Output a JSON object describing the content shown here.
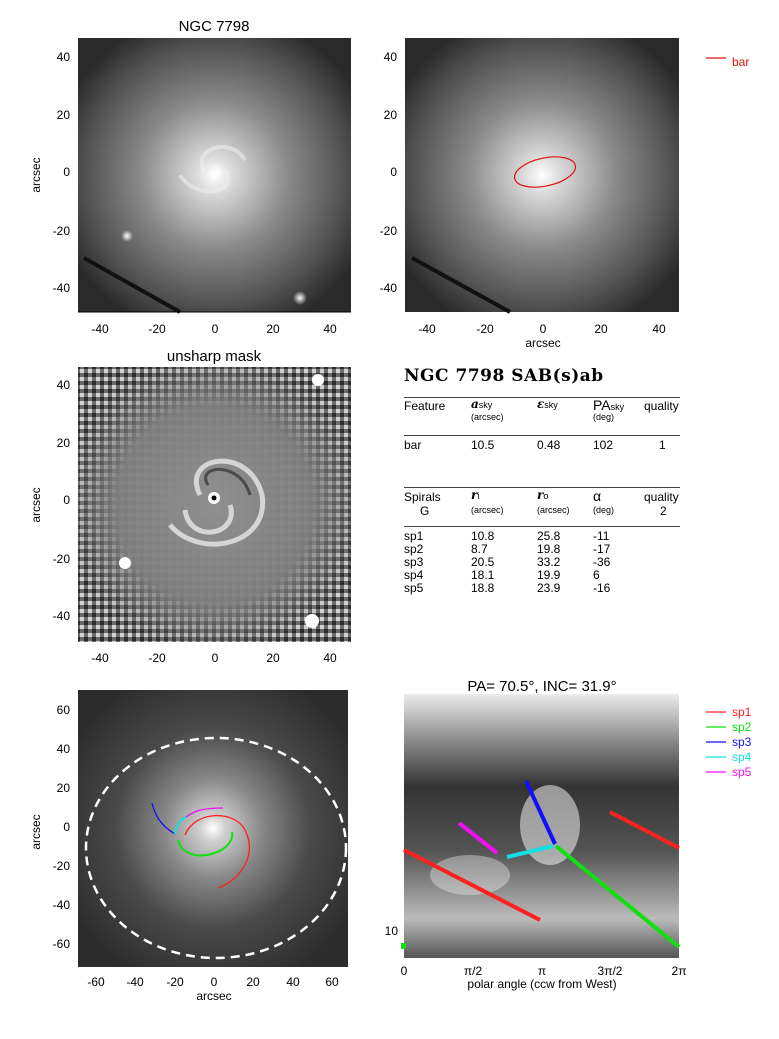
{
  "panels": {
    "p1_title": "NGC 7798",
    "p3_title": "unsharp mask",
    "p6_title": "PA= 70.5°, INC= 31.9°"
  },
  "axes": {
    "ylabel": "arcsec",
    "xlabel_p2": "arcsec",
    "xlabel_p5": "arcsec",
    "xlabel_p6": "polar angle (ccw from West)",
    "ticks_small": [
      "-40",
      "-20",
      "0",
      "20",
      "40"
    ],
    "ticks_large": [
      "-60",
      "-40",
      "-20",
      "0",
      "20",
      "40",
      "60"
    ],
    "ticks_polar": [
      "0",
      "π/2",
      "π",
      "3π/2",
      "2π"
    ],
    "p6_ytick": "10"
  },
  "legend_top": {
    "label": "bar",
    "color": "#e01010"
  },
  "legend_bottom": [
    {
      "label": "sp1",
      "color": "#ff2020"
    },
    {
      "label": "sp2",
      "color": "#10e010"
    },
    {
      "label": "sp3",
      "color": "#1010ff"
    },
    {
      "label": "sp4",
      "color": "#10e0e0"
    },
    {
      "label": "sp5",
      "color": "#f010f0"
    }
  ],
  "table": {
    "title": "NGC 7798  SAB(s)ab",
    "bar_header": {
      "feature": "Feature",
      "a": "a",
      "a_sub": "sky",
      "a_unit": "(arcsec)",
      "e": "ε",
      "e_sub": "sky",
      "pa": "PA",
      "pa_sub": "sky",
      "pa_unit": "(deg)",
      "quality": "quality"
    },
    "bar_row": {
      "name": "bar",
      "a": "10.5",
      "e": "0.48",
      "pa": "102",
      "q": "1"
    },
    "spiral_header": {
      "feature": "Spirals",
      "g": "G",
      "ri": "r",
      "ri_sub": "i",
      "ri_unit": "(arcsec)",
      "ro": "r",
      "ro_sub": "o",
      "ro_unit": "(arcsec)",
      "alpha": "α",
      "alpha_unit": "(deg)",
      "quality": "quality",
      "q": "2"
    },
    "spiral_rows": [
      {
        "name": "sp1",
        "ri": "10.8",
        "ro": "25.8",
        "alpha": "-11"
      },
      {
        "name": "sp2",
        "ri": "8.7",
        "ro": "19.8",
        "alpha": "-17"
      },
      {
        "name": "sp3",
        "ri": "20.5",
        "ro": "33.2",
        "alpha": "-36"
      },
      {
        "name": "sp4",
        "ri": "18.1",
        "ro": "19.9",
        "alpha": "6"
      },
      {
        "name": "sp5",
        "ri": "18.8",
        "ro": "23.9",
        "alpha": "-16"
      }
    ]
  }
}
